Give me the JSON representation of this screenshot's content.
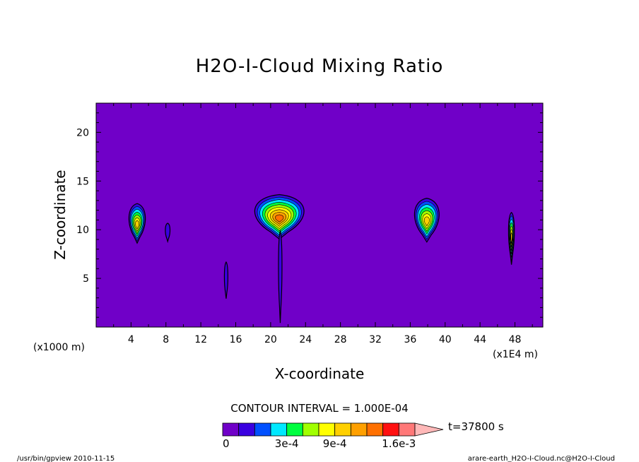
{
  "chart_data": {
    "type": "contour",
    "title": "H2O-I-Cloud Mixing Ratio",
    "xlabel": "X-coordinate",
    "ylabel": "Z-coordinate",
    "x_unit_left": "(x1000 m)",
    "x_unit_right": "(x1E4 m)",
    "xlim": [
      0,
      51.2
    ],
    "ylim": [
      0,
      23
    ],
    "x_ticks": [
      4,
      8,
      12,
      16,
      20,
      24,
      28,
      32,
      36,
      40,
      44,
      48
    ],
    "y_ticks": [
      5,
      10,
      15,
      20
    ],
    "background_color": "#7000c8",
    "contour_interval_text": "CONTOUR INTERVAL = 1.000E-04",
    "time_label": "t=37800 s",
    "colorbar": {
      "levels": [
        0,
        0.0001,
        0.0002,
        0.0003,
        0.0005,
        0.0007,
        0.0009,
        0.0011,
        0.0013,
        0.0014,
        0.0016,
        0.0018
      ],
      "colors": [
        "#7000c8",
        "#3a00e0",
        "#0050ff",
        "#00e8ff",
        "#00ff40",
        "#a0ff00",
        "#ffff00",
        "#ffd000",
        "#ffa000",
        "#ff7000",
        "#ff1010",
        "#ff7878",
        "#ffb8b8"
      ],
      "tick_labels": [
        "0",
        "3e-4",
        "9e-4",
        "1.6e-3"
      ],
      "tick_levels": [
        0,
        0.0003,
        0.0009,
        0.0016
      ]
    },
    "features": [
      {
        "x": 4.7,
        "z": 10.8,
        "peak": 0.0009
      },
      {
        "x": 8.2,
        "z": 9.8,
        "peak": 5e-05
      },
      {
        "x": 14.9,
        "z": 4.8,
        "peak": 5e-05
      },
      {
        "x": 21.0,
        "z": 11.5,
        "peak": 0.0013
      },
      {
        "x": 21.1,
        "z": 5.5,
        "peak": 5e-05
      },
      {
        "x": 37.9,
        "z": 11.2,
        "peak": 0.0009
      },
      {
        "x": 47.6,
        "z": 9.6,
        "peak": 0.0009
      }
    ]
  },
  "footer": {
    "program": "/usr/bin/gpview  2010-11-15",
    "source": "arare-earth_H2O-I-Cloud.nc@H2O-I-Cloud"
  }
}
